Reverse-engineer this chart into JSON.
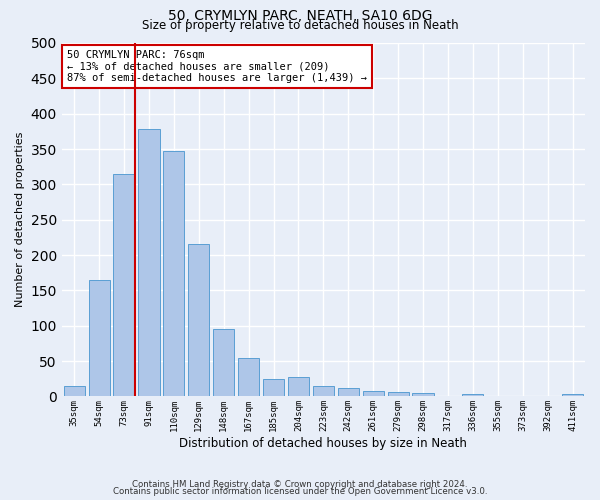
{
  "title": "50, CRYMLYN PARC, NEATH, SA10 6DG",
  "subtitle": "Size of property relative to detached houses in Neath",
  "xlabel": "Distribution of detached houses by size in Neath",
  "ylabel": "Number of detached properties",
  "categories": [
    "35sqm",
    "54sqm",
    "73sqm",
    "91sqm",
    "110sqm",
    "129sqm",
    "148sqm",
    "167sqm",
    "185sqm",
    "204sqm",
    "223sqm",
    "242sqm",
    "261sqm",
    "279sqm",
    "298sqm",
    "317sqm",
    "336sqm",
    "355sqm",
    "373sqm",
    "392sqm",
    "411sqm"
  ],
  "values": [
    15,
    165,
    315,
    378,
    347,
    215,
    95,
    55,
    25,
    28,
    15,
    12,
    7,
    6,
    5,
    0,
    3,
    1,
    1,
    1,
    3
  ],
  "bar_color": "#aec6e8",
  "bar_edge_color": "#5a9fd4",
  "ylim": [
    0,
    500
  ],
  "yticks": [
    0,
    50,
    100,
    150,
    200,
    250,
    300,
    350,
    400,
    450,
    500
  ],
  "property_line_color": "#cc0000",
  "annotation_text": "50 CRYMLYN PARC: 76sqm\n← 13% of detached houses are smaller (209)\n87% of semi-detached houses are larger (1,439) →",
  "annotation_box_color": "#ffffff",
  "annotation_box_edge_color": "#cc0000",
  "footer1": "Contains HM Land Registry data © Crown copyright and database right 2024.",
  "footer2": "Contains public sector information licensed under the Open Government Licence v3.0.",
  "background_color": "#e8eef8",
  "grid_color": "#ffffff"
}
